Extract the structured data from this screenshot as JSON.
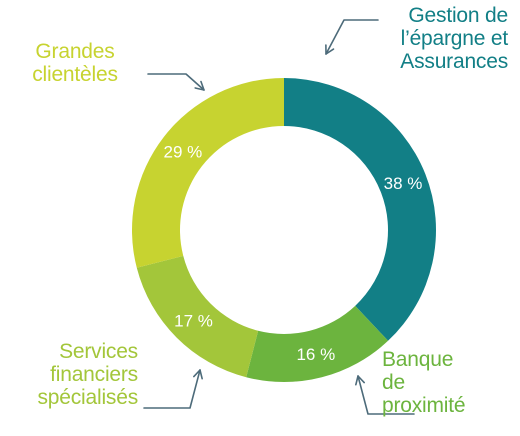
{
  "chart_data": {
    "type": "pie",
    "title": "",
    "donut": true,
    "categories": [
      "Gestion de l’épargne et Assurances",
      "Banque de proximité",
      "Services financiers spécialisés",
      "Grandes clientèles"
    ],
    "values": [
      38,
      16,
      17,
      29
    ],
    "value_labels": [
      "38 %",
      "16 %",
      "17 %",
      "29 %"
    ],
    "label_lines": [
      [
        "Gestion de",
        "l’épargne et",
        "Assurances"
      ],
      [
        "Banque",
        "de",
        "proximité"
      ],
      [
        "Services",
        "financiers",
        "spécialisés"
      ],
      [
        "Grandes",
        "clientèles"
      ]
    ],
    "colors": [
      "#127f86",
      "#6cb43e",
      "#a3c63a",
      "#c7d330"
    ],
    "label_colors": [
      "#127f86",
      "#6cb43e",
      "#a3c63a",
      "#c7d330"
    ],
    "legend": "callouts",
    "arrow_color": "#4d6b7a"
  }
}
